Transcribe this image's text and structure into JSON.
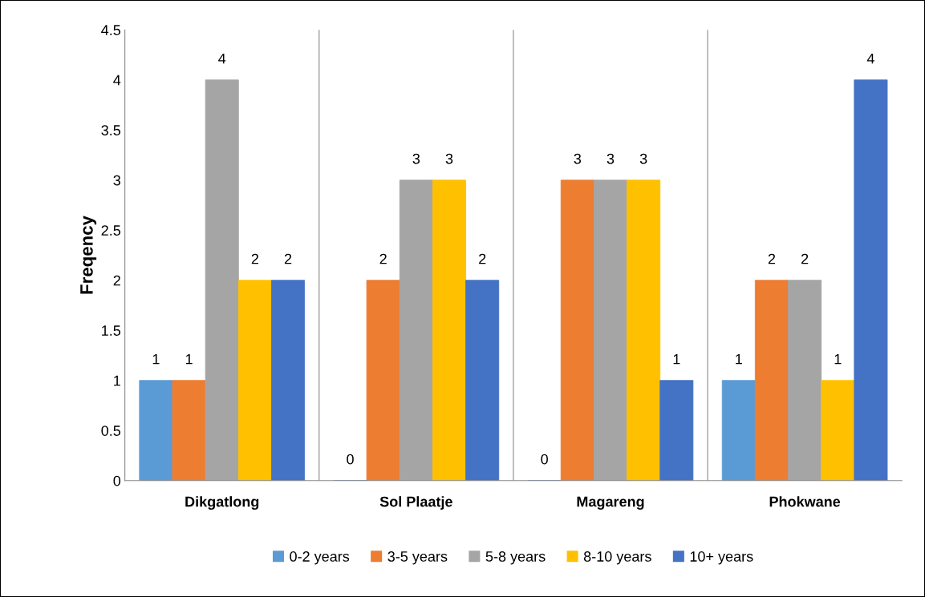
{
  "chart_data": {
    "type": "bar",
    "categories": [
      "Dikgatlong",
      "Sol Plaatje",
      "Magareng",
      "Phokwane"
    ],
    "series": [
      {
        "name": "0-2 years",
        "color": "#5b9bd5",
        "values": [
          1,
          0,
          0,
          1
        ]
      },
      {
        "name": "3-5 years",
        "color": "#ed7d31",
        "values": [
          1,
          2,
          3,
          2
        ]
      },
      {
        "name": "5-8 years",
        "color": "#a5a5a5",
        "values": [
          4,
          3,
          3,
          2
        ]
      },
      {
        "name": "8-10 years",
        "color": "#ffc000",
        "values": [
          2,
          3,
          3,
          1
        ]
      },
      {
        "name": "10+ years",
        "color": "#4472c4",
        "values": [
          2,
          2,
          1,
          4
        ]
      }
    ],
    "ylabel": "Freqency",
    "ylim": [
      0,
      4.5
    ],
    "yticks": [
      0,
      0.5,
      1,
      1.5,
      2,
      2.5,
      3,
      3.5,
      4,
      4.5
    ],
    "grid": "x",
    "legend": "bottom",
    "data_labels": true
  }
}
